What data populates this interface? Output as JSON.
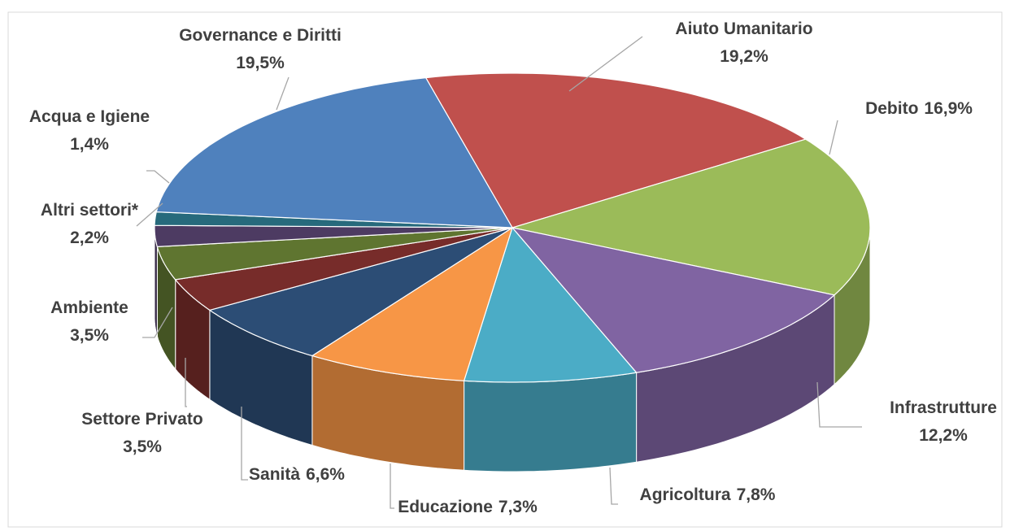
{
  "chart_data": {
    "type": "pie3d",
    "categories": [
      "Aiuto Umanitario",
      "Debito",
      "Infrastrutture",
      "Agricoltura",
      "Educazione",
      "Sanità",
      "Settore Privato",
      "Ambiente",
      "Altri settori*",
      "Acqua e Igiene",
      "Governance e Diritti"
    ],
    "values": [
      19.2,
      16.9,
      12.2,
      7.8,
      7.3,
      6.6,
      3.5,
      3.5,
      2.2,
      1.4,
      19.5
    ],
    "value_labels": [
      "19,2%",
      "16,9%",
      "12,2%",
      "7,8%",
      "7,3%",
      "6,6%",
      "3,5%",
      "3,5%",
      "2,2%",
      "1,4%",
      "19,5%"
    ],
    "colors": [
      "#c0504d",
      "#9bbb59",
      "#8064a2",
      "#4bacc6",
      "#f79646",
      "#2c4d75",
      "#772c2a",
      "#5f7530",
      "#4d3b62",
      "#276a7c",
      "#4f81bd"
    ]
  }
}
